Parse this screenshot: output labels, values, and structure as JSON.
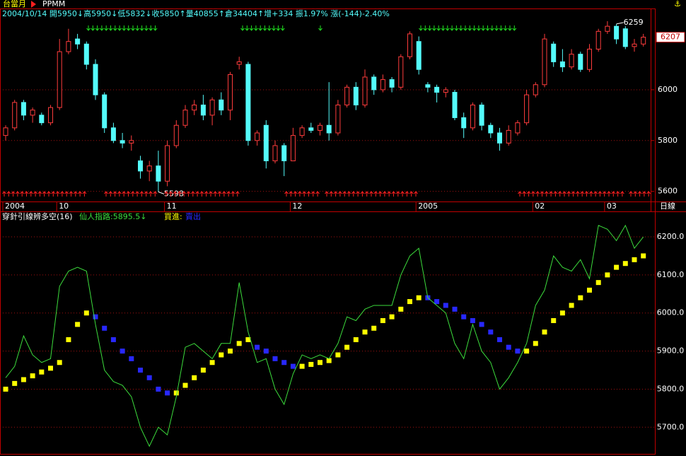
{
  "chart_data": [
    {
      "type": "candlestick",
      "title": "台當月",
      "subtitle": "PPMM",
      "annotation": "2004/10/14 開5950↓高5950↓低5832↓收5850↑量40855↑倉34404↑增+334 振1.97% 漲(-144)-2.40%",
      "period_label": "日線",
      "last_price": 6207,
      "high_label": 6259,
      "low_label": 5598,
      "up_color": "#ff3c3c",
      "down_color": "#54fcfc",
      "categories": [
        "2004",
        null,
        null,
        null,
        null,
        null,
        "10",
        null,
        null,
        null,
        null,
        null,
        null,
        null,
        null,
        null,
        null,
        null,
        "11",
        null,
        null,
        null,
        null,
        null,
        null,
        null,
        null,
        null,
        null,
        null,
        null,
        null,
        "12",
        null,
        null,
        null,
        null,
        null,
        null,
        null,
        null,
        null,
        null,
        null,
        null,
        null,
        "2005",
        null,
        null,
        null,
        null,
        null,
        null,
        null,
        null,
        null,
        null,
        null,
        null,
        "02",
        null,
        null,
        null,
        null,
        null,
        null,
        null,
        "03",
        null,
        null,
        null,
        null
      ],
      "candles": [
        [
          5820,
          5860,
          5800,
          5850
        ],
        [
          5850,
          5960,
          5840,
          5950
        ],
        [
          5950,
          5960,
          5880,
          5900
        ],
        [
          5900,
          5930,
          5870,
          5920
        ],
        [
          5900,
          5910,
          5860,
          5870
        ],
        [
          5870,
          5940,
          5860,
          5930
        ],
        [
          5930,
          6200,
          5920,
          6150
        ],
        [
          6150,
          6240,
          6140,
          6190
        ],
        [
          6200,
          6220,
          6160,
          6180
        ],
        [
          6180,
          6190,
          6080,
          6100
        ],
        [
          6100,
          6120,
          5960,
          5980
        ],
        [
          5980,
          5990,
          5830,
          5850
        ],
        [
          5850,
          5870,
          5790,
          5800
        ],
        [
          5800,
          5830,
          5770,
          5790
        ],
        [
          5790,
          5820,
          5760,
          5800
        ],
        [
          5720,
          5740,
          5650,
          5680
        ],
        [
          5680,
          5720,
          5640,
          5700
        ],
        [
          5700,
          5760,
          5598,
          5640
        ],
        [
          5640,
          5800,
          5620,
          5780
        ],
        [
          5780,
          5880,
          5770,
          5860
        ],
        [
          5860,
          5940,
          5850,
          5920
        ],
        [
          5920,
          5960,
          5900,
          5940
        ],
        [
          5940,
          5980,
          5880,
          5900
        ],
        [
          5900,
          5970,
          5860,
          5960
        ],
        [
          5960,
          5990,
          5900,
          5920
        ],
        [
          5920,
          6070,
          5880,
          6060
        ],
        [
          6100,
          6130,
          6080,
          6110
        ],
        [
          6100,
          6110,
          5780,
          5800
        ],
        [
          5800,
          5840,
          5780,
          5830
        ],
        [
          5860,
          5880,
          5690,
          5720
        ],
        [
          5720,
          5800,
          5710,
          5780
        ],
        [
          5780,
          5790,
          5660,
          5720
        ],
        [
          5720,
          5850,
          5720,
          5820
        ],
        [
          5820,
          5860,
          5810,
          5850
        ],
        [
          5850,
          5870,
          5830,
          5840
        ],
        [
          5840,
          5870,
          5820,
          5860
        ],
        [
          5860,
          6030,
          5800,
          5830
        ],
        [
          5830,
          5960,
          5820,
          5940
        ],
        [
          5940,
          6020,
          5930,
          6010
        ],
        [
          6010,
          6030,
          5920,
          5940
        ],
        [
          5940,
          6080,
          5930,
          6050
        ],
        [
          6050,
          6060,
          5980,
          6000
        ],
        [
          6000,
          6060,
          5990,
          6040
        ],
        [
          6040,
          6050,
          5990,
          6010
        ],
        [
          6010,
          6140,
          6000,
          6130
        ],
        [
          6130,
          6230,
          6120,
          6220
        ],
        [
          6190,
          6210,
          6060,
          6080
        ],
        [
          6020,
          6030,
          5990,
          6010
        ],
        [
          6010,
          6020,
          5950,
          5990
        ],
        [
          5990,
          6010,
          5970,
          6000
        ],
        [
          5990,
          6000,
          5880,
          5890
        ],
        [
          5890,
          5910,
          5810,
          5850
        ],
        [
          5850,
          5950,
          5840,
          5940
        ],
        [
          5940,
          5950,
          5840,
          5860
        ],
        [
          5860,
          5870,
          5810,
          5830
        ],
        [
          5830,
          5850,
          5760,
          5790
        ],
        [
          5790,
          5860,
          5780,
          5840
        ],
        [
          5830,
          5880,
          5820,
          5870
        ],
        [
          5870,
          6000,
          5860,
          5980
        ],
        [
          5980,
          6030,
          5970,
          6020
        ],
        [
          6020,
          6220,
          6010,
          6200
        ],
        [
          6180,
          6190,
          6090,
          6110
        ],
        [
          6110,
          6160,
          6070,
          6090
        ],
        [
          6090,
          6160,
          6080,
          6140
        ],
        [
          6140,
          6150,
          6070,
          6080
        ],
        [
          6080,
          6180,
          6070,
          6160
        ],
        [
          6160,
          6240,
          6150,
          6230
        ],
        [
          6230,
          6270,
          6220,
          6250
        ],
        [
          6250,
          6259,
          6180,
          6200
        ],
        [
          6240,
          6250,
          6160,
          6170
        ],
        [
          6170,
          6200,
          6150,
          6180
        ],
        [
          6180,
          6220,
          6170,
          6207
        ]
      ],
      "ylim": [
        5560,
        6320
      ],
      "yticks": [
        5600,
        5800,
        6000
      ],
      "grid": true
    },
    {
      "type": "line",
      "title": "穿針引線辨多空(16)",
      "indicator_label": "仙人指路:5895.5↓",
      "values": [
        5830,
        5860,
        5940,
        5890,
        5870,
        5880,
        6070,
        6110,
        6120,
        6110,
        5970,
        5850,
        5820,
        5810,
        5780,
        5700,
        5650,
        5700,
        5680,
        5780,
        5910,
        5920,
        5900,
        5880,
        5920,
        5920,
        6080,
        5950,
        5870,
        5880,
        5800,
        5760,
        5840,
        5890,
        5880,
        5890,
        5880,
        5920,
        5990,
        5980,
        6010,
        6020,
        6020,
        6020,
        6100,
        6150,
        6170,
        6040,
        6020,
        6000,
        5920,
        5880,
        5970,
        5900,
        5870,
        5800,
        5830,
        5870,
        5920,
        6020,
        6060,
        6150,
        6120,
        6110,
        6140,
        6090,
        6230,
        6220,
        6190,
        6230,
        6170,
        6200
      ],
      "color": "#3cdc3c",
      "series": [
        {
          "name": "買進:",
          "color": "#ffff00",
          "values": [
            5800,
            5815,
            5825,
            5835,
            5845,
            5855,
            5870,
            5930,
            5970,
            6000,
            null,
            null,
            null,
            null,
            null,
            null,
            null,
            null,
            null,
            5790,
            5810,
            5830,
            5850,
            5870,
            5890,
            5900,
            5920,
            5930,
            null,
            null,
            null,
            null,
            null,
            5860,
            5865,
            5870,
            5875,
            5890,
            5910,
            5930,
            5950,
            5960,
            5980,
            5990,
            6010,
            6030,
            6040,
            null,
            null,
            null,
            null,
            null,
            null,
            null,
            null,
            null,
            null,
            null,
            5900,
            5920,
            5950,
            5980,
            6000,
            6020,
            6040,
            6060,
            6080,
            6100,
            6120,
            6130,
            6140,
            6150
          ]
        },
        {
          "name": "賣出",
          "color": "#2828ff",
          "values": [
            null,
            null,
            null,
            null,
            null,
            null,
            null,
            null,
            null,
            null,
            5990,
            5960,
            5930,
            5900,
            5880,
            5850,
            5830,
            5800,
            5790,
            null,
            null,
            null,
            null,
            null,
            null,
            null,
            null,
            null,
            5910,
            5900,
            5880,
            5870,
            5860,
            null,
            null,
            null,
            null,
            null,
            null,
            null,
            null,
            null,
            null,
            null,
            null,
            null,
            null,
            6040,
            6030,
            6020,
            6010,
            5990,
            5980,
            5970,
            5950,
            5930,
            5910,
            5900,
            null,
            null,
            null,
            null,
            null,
            null,
            null,
            null,
            null,
            null,
            null,
            null,
            null,
            null
          ]
        }
      ],
      "ylim": [
        5630,
        6265
      ],
      "yticks": [
        {
          "value": 5700,
          "label": "5700.0"
        },
        {
          "value": 5800,
          "label": "5800.0"
        },
        {
          "value": 5900,
          "label": "5900.0"
        },
        {
          "value": 6000,
          "label": "6000.0"
        },
        {
          "value": 6100,
          "label": "6100.0"
        },
        {
          "value": 6200,
          "label": "6200.0"
        }
      ],
      "grid": true
    }
  ]
}
